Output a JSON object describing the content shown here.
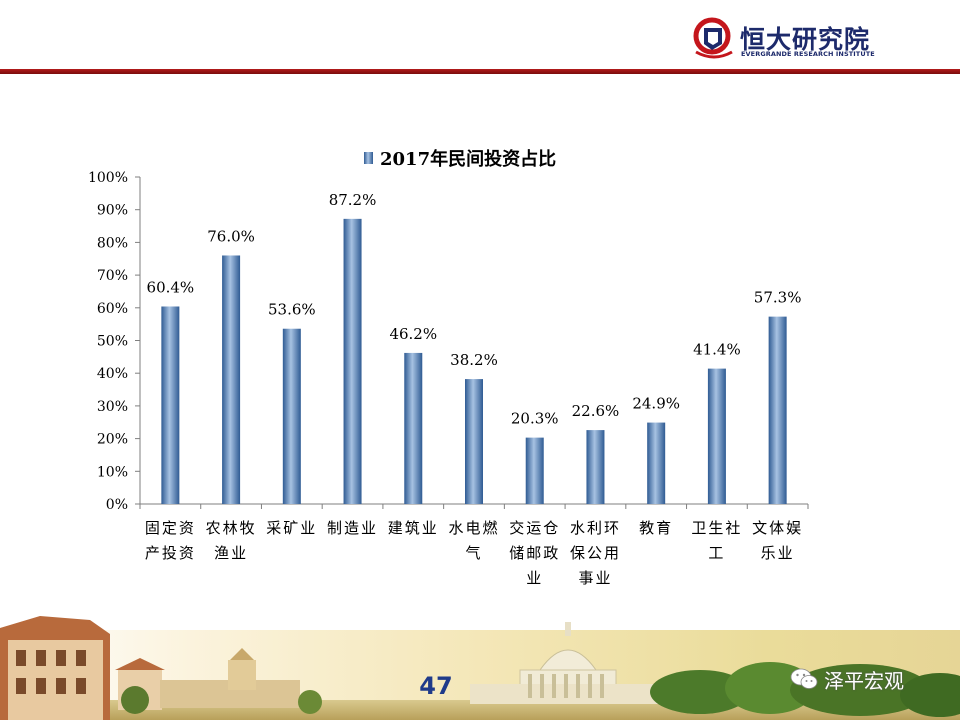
{
  "header": {
    "brand_cn": "恒大研究院",
    "brand_en": "EVERGRANDE RESEARCH INSTITUTE",
    "accent_color": "#9b1515",
    "brand_color": "#1d2a6b"
  },
  "chart_data": {
    "type": "bar",
    "title": "",
    "xlabel": "",
    "ylabel": "",
    "legend": {
      "labels": [
        "2017年民间投资占比"
      ],
      "placement": "top-center"
    },
    "ylim": [
      0,
      100
    ],
    "y_ticks": [
      "0%",
      "10%",
      "20%",
      "30%",
      "40%",
      "50%",
      "60%",
      "70%",
      "80%",
      "90%",
      "100%"
    ],
    "categories": [
      [
        "固定资",
        "产投资"
      ],
      [
        "农林牧",
        "渔业"
      ],
      [
        "采矿业"
      ],
      [
        "制造业"
      ],
      [
        "建筑业"
      ],
      [
        "水电燃",
        "气"
      ],
      [
        "交运仓",
        "储邮政",
        "业"
      ],
      [
        "水利环",
        "保公用",
        "事业"
      ],
      [
        "教育"
      ],
      [
        "卫生社",
        "工"
      ],
      [
        "文体娱",
        "乐业"
      ]
    ],
    "series": [
      {
        "name": "2017年民间投资占比",
        "values": [
          60.4,
          76.0,
          53.6,
          87.2,
          46.2,
          38.2,
          20.3,
          22.6,
          24.9,
          41.4,
          57.3
        ],
        "data_labels": [
          "60.4%",
          "76.0%",
          "53.6%",
          "87.2%",
          "46.2%",
          "38.2%",
          "20.3%",
          "22.6%",
          "24.9%",
          "41.4%",
          "57.3%"
        ],
        "color": "#4f81bd"
      }
    ],
    "grid": false
  },
  "footer": {
    "page_number": "47",
    "watermark_text": "泽平宏观"
  }
}
